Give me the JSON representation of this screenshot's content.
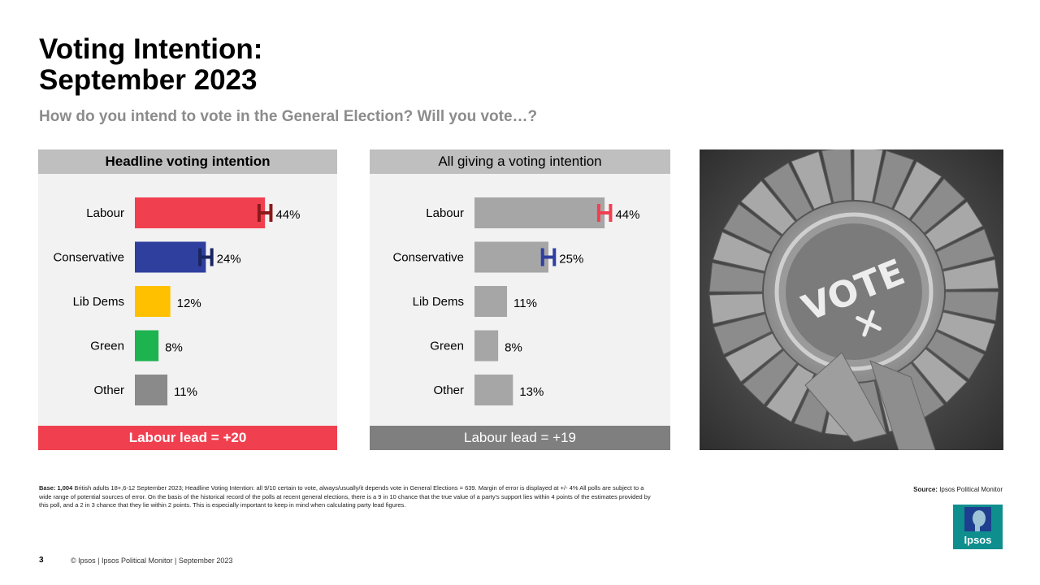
{
  "page": {
    "title_line1": "Voting Intention:",
    "title_line2": "September 2023",
    "subtitle": "How do you intend to vote in the General Election? Will you vote…?",
    "notes_base_label": "Base: 1,004",
    "notes_text": "British adults 18+,6-12 September 2023; Headline Voting Intention: all 9/10 certain to vote, always/usually/it depends vote in General Elections = 639. Margin of error is displayed at +/- 4% All polls are subject to a wide range of potential sources of error. On the basis of the historical record of the polls at recent general elections, there is a 9 in 10 chance that the true value of a party's support lies within 4 points of the estimates provided by this poll, and a 2 in 3 chance that they lie within 2 points. This is especially important to keep in mind when calculating party lead figures.",
    "source_label": "Source:",
    "source_text": "Ipsos Political Monitor",
    "logo_text": "Ipsos",
    "page_number": "3",
    "footer": "© Ipsos | Ipsos Political Monitor | September 2023",
    "photo_text": "VOTE"
  },
  "chart_data": [
    {
      "type": "bar",
      "orientation": "horizontal",
      "title": "Headline voting intention",
      "categories": [
        "Labour",
        "Conservative",
        "Lib Dems",
        "Green",
        "Other"
      ],
      "values": [
        44,
        24,
        12,
        8,
        11
      ],
      "labels": [
        "44%",
        "24%",
        "12%",
        "8%",
        "11%"
      ],
      "bar_colors": [
        "#f04050",
        "#2e3f9e",
        "#ffc000",
        "#1db34f",
        "#8a8a8a"
      ],
      "error_bars": [
        {
          "category": "Labour",
          "margin": 4,
          "color": "#8b1a1a"
        },
        {
          "category": "Conservative",
          "margin": 4,
          "color": "#1a2560"
        }
      ],
      "xlim": [
        0,
        60
      ],
      "footer": "Labour lead = +20",
      "footer_color": "#f04050",
      "header_bold": true,
      "footer_bold": true
    },
    {
      "type": "bar",
      "orientation": "horizontal",
      "title": "All giving a voting intention",
      "categories": [
        "Labour",
        "Conservative",
        "Lib Dems",
        "Green",
        "Other"
      ],
      "values": [
        44,
        25,
        11,
        8,
        13
      ],
      "labels": [
        "44%",
        "25%",
        "11%",
        "8%",
        "13%"
      ],
      "bar_colors": [
        "#a6a6a6",
        "#a6a6a6",
        "#a6a6a6",
        "#a6a6a6",
        "#a6a6a6"
      ],
      "error_bars": [
        {
          "category": "Labour",
          "margin": 4,
          "color": "#f04050"
        },
        {
          "category": "Conservative",
          "margin": 4,
          "color": "#2e3f9e"
        }
      ],
      "xlim": [
        0,
        60
      ],
      "footer": "Labour lead = +19",
      "footer_color": "#7f7f7f",
      "header_bold": false,
      "footer_bold": false
    }
  ]
}
